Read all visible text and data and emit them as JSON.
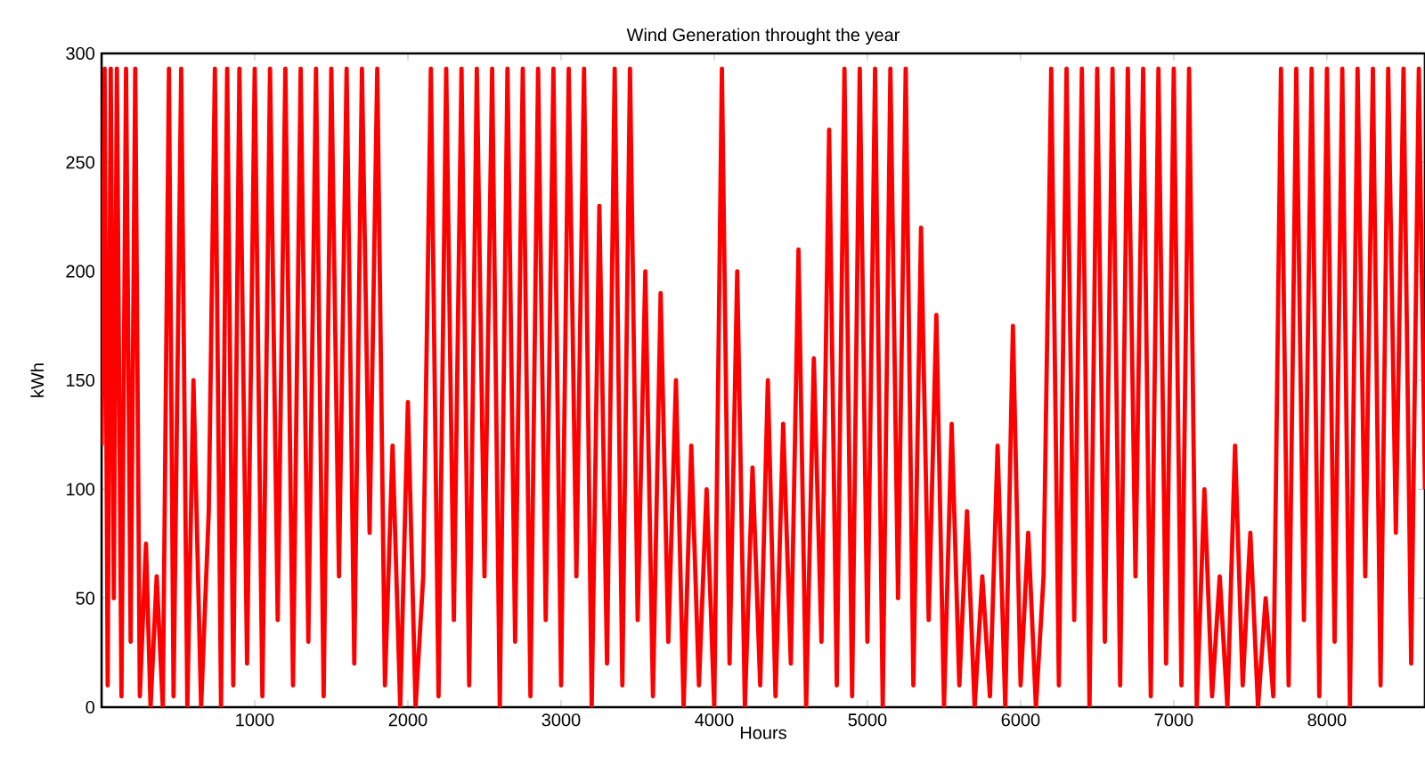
{
  "chart_data": {
    "type": "line",
    "title": "Wind Generation throught the year",
    "xlabel": "Hours",
    "ylabel": "kWh",
    "x": [
      0,
      20,
      40,
      60,
      80,
      100,
      130,
      160,
      190,
      220,
      250,
      290,
      320,
      360,
      400,
      440,
      470,
      520,
      560,
      600,
      650,
      700,
      740,
      780,
      820,
      860,
      900,
      950,
      1000,
      1050,
      1100,
      1150,
      1200,
      1250,
      1300,
      1350,
      1400,
      1450,
      1500,
      1550,
      1600,
      1650,
      1700,
      1750,
      1800,
      1850,
      1900,
      1950,
      2000,
      2050,
      2100,
      2150,
      2200,
      2250,
      2300,
      2350,
      2400,
      2450,
      2500,
      2550,
      2600,
      2650,
      2700,
      2750,
      2800,
      2850,
      2900,
      2950,
      3000,
      3050,
      3100,
      3150,
      3200,
      3250,
      3300,
      3350,
      3400,
      3450,
      3500,
      3550,
      3600,
      3650,
      3700,
      3750,
      3800,
      3850,
      3900,
      3950,
      4000,
      4050,
      4100,
      4150,
      4200,
      4250,
      4300,
      4350,
      4400,
      4450,
      4500,
      4550,
      4600,
      4650,
      4700,
      4750,
      4800,
      4850,
      4900,
      4950,
      5000,
      5050,
      5100,
      5150,
      5200,
      5250,
      5300,
      5350,
      5400,
      5450,
      5500,
      5550,
      5600,
      5650,
      5700,
      5750,
      5800,
      5850,
      5900,
      5950,
      6000,
      6050,
      6100,
      6150,
      6200,
      6250,
      6300,
      6350,
      6400,
      6450,
      6500,
      6550,
      6600,
      6650,
      6700,
      6750,
      6800,
      6850,
      6900,
      6950,
      7000,
      7050,
      7100,
      7150,
      7200,
      7250,
      7300,
      7350,
      7400,
      7450,
      7500,
      7550,
      7600,
      7650,
      7700,
      7750,
      7800,
      7850,
      7900,
      7950,
      8000,
      8050,
      8100,
      8150,
      8200,
      8250,
      8300,
      8350,
      8400,
      8450,
      8500,
      8550,
      8600,
      8640
    ],
    "series": [
      {
        "color": "#ff0000",
        "values": [
          120,
          293,
          10,
          293,
          50,
          293,
          5,
          293,
          30,
          293,
          5,
          75,
          0,
          60,
          0,
          293,
          5,
          293,
          0,
          150,
          0,
          90,
          293,
          0,
          293,
          10,
          293,
          20,
          293,
          5,
          293,
          40,
          293,
          10,
          293,
          30,
          293,
          5,
          293,
          60,
          293,
          20,
          293,
          80,
          293,
          10,
          120,
          0,
          140,
          0,
          60,
          293,
          5,
          293,
          40,
          293,
          10,
          293,
          60,
          293,
          0,
          293,
          30,
          293,
          5,
          293,
          40,
          293,
          10,
          293,
          60,
          293,
          0,
          230,
          20,
          293,
          10,
          293,
          40,
          200,
          5,
          190,
          30,
          150,
          0,
          120,
          10,
          100,
          0,
          293,
          20,
          200,
          0,
          110,
          10,
          150,
          5,
          130,
          20,
          210,
          0,
          160,
          30,
          265,
          10,
          293,
          5,
          293,
          30,
          293,
          0,
          293,
          50,
          293,
          10,
          220,
          40,
          180,
          0,
          130,
          10,
          90,
          0,
          60,
          5,
          120,
          0,
          175,
          10,
          80,
          0,
          60,
          293,
          10,
          293,
          40,
          293,
          0,
          293,
          30,
          293,
          10,
          293,
          60,
          293,
          5,
          293,
          20,
          293,
          10,
          293,
          0,
          100,
          5,
          60,
          0,
          120,
          10,
          80,
          0,
          50,
          5,
          293,
          10,
          293,
          40,
          293,
          5,
          293,
          30,
          293,
          0,
          293,
          60,
          293,
          10,
          293,
          80,
          293,
          20,
          293,
          100
        ]
      }
    ],
    "xlim": [
      0,
      8640
    ],
    "ylim": [
      0,
      300
    ],
    "xticks": [
      1000,
      2000,
      3000,
      4000,
      5000,
      6000,
      7000,
      8000
    ],
    "yticks": [
      0,
      50,
      100,
      150,
      200,
      250,
      300
    ]
  }
}
